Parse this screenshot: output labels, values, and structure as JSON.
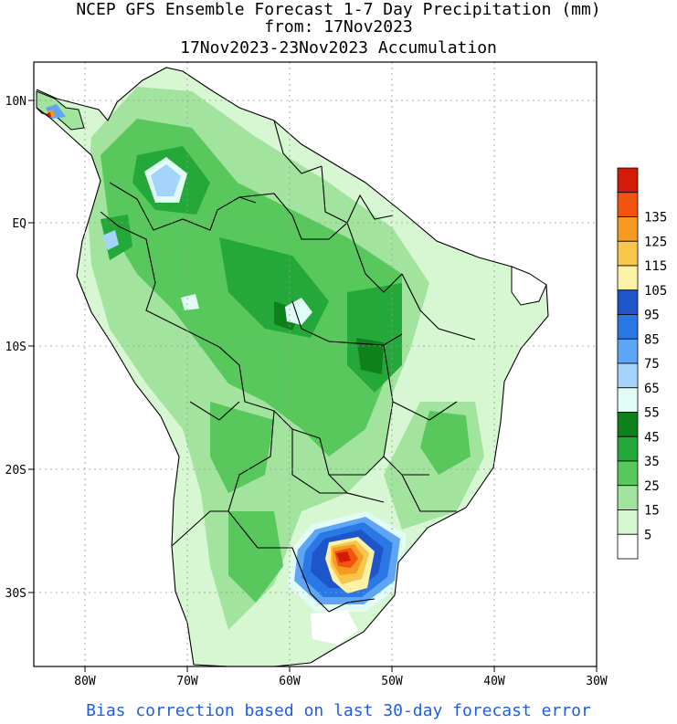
{
  "title": {
    "line1": "NCEP GFS Ensemble Forecast 1-7 Day Precipitation (mm)",
    "line2": "from: 17Nov2023",
    "line3": "17Nov2023-23Nov2023 Accumulation"
  },
  "axes": {
    "lat_labels": [
      "10N",
      "EQ",
      "10S",
      "20S",
      "30S"
    ],
    "lon_labels": [
      "80W",
      "70W",
      "60W",
      "50W",
      "40W",
      "30W"
    ]
  },
  "colorbar": {
    "levels": [
      {
        "label": "",
        "color": "#d41b08"
      },
      {
        "label": "135",
        "color": "#f2540f"
      },
      {
        "label": "125",
        "color": "#f59b22"
      },
      {
        "label": "115",
        "color": "#f7c64a"
      },
      {
        "label": "105",
        "color": "#fbf2a8"
      },
      {
        "label": "95",
        "color": "#1e55c8"
      },
      {
        "label": "85",
        "color": "#2a78e6"
      },
      {
        "label": "75",
        "color": "#5ea6f5"
      },
      {
        "label": "65",
        "color": "#a4d3fb"
      },
      {
        "label": "55",
        "color": "#e1fbf6"
      },
      {
        "label": "45",
        "color": "#10801c"
      },
      {
        "label": "35",
        "color": "#24a83a"
      },
      {
        "label": "25",
        "color": "#58c85c"
      },
      {
        "label": "15",
        "color": "#a2e39e"
      },
      {
        "label": "5",
        "color": "#d7f6d2"
      },
      {
        "label": "",
        "color": "#ffffff"
      }
    ]
  },
  "footer": "Bias correction based on last 30-day forecast error"
}
